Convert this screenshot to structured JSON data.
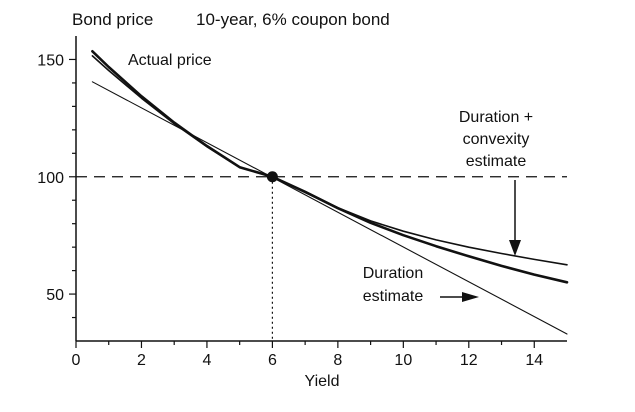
{
  "chart_data": {
    "type": "line",
    "title": "10-year, 6% coupon bond",
    "ylabel": "Bond price",
    "xlabel": "Yield",
    "xlim": [
      0,
      15
    ],
    "ylim": [
      30,
      160
    ],
    "xticks": [
      "0",
      "2",
      "4",
      "6",
      "8",
      "10",
      "12",
      "14"
    ],
    "yticks": [
      "50",
      "100",
      "150"
    ],
    "grid": false,
    "reference": {
      "x": 6,
      "y": 100,
      "line_style": "dashed"
    },
    "series": [
      {
        "name": "Actual price",
        "x": [
          0.5,
          1,
          2,
          3,
          4,
          5,
          6,
          7,
          8,
          9,
          10,
          11,
          12,
          13,
          14,
          15
        ],
        "y": [
          153.5,
          146.8,
          134.3,
          123.1,
          113.1,
          104.1,
          100,
          93.6,
          86.6,
          80.4,
          75.1,
          70.4,
          66.1,
          62,
          58.3,
          55
        ]
      },
      {
        "name": "Duration + convexity estimate",
        "x": [
          0.5,
          1,
          2,
          3,
          4,
          5,
          6,
          7,
          8,
          9,
          10,
          11,
          12,
          13,
          14,
          15
        ],
        "y": [
          151.5,
          145.3,
          133.5,
          122.6,
          112.8,
          104,
          100,
          93.3,
          86.8,
          81.2,
          76.8,
          73.1,
          70,
          67.3,
          64.8,
          62.5
        ]
      },
      {
        "name": "Duration estimate",
        "x": [
          0.5,
          15
        ],
        "y": [
          140.5,
          33
        ]
      }
    ],
    "annotations": [
      {
        "text": "Actual price"
      },
      {
        "text": "Duration +"
      },
      {
        "text": "convexity"
      },
      {
        "text": "estimate"
      },
      {
        "text": "Duration"
      },
      {
        "text": "estimate"
      }
    ]
  }
}
